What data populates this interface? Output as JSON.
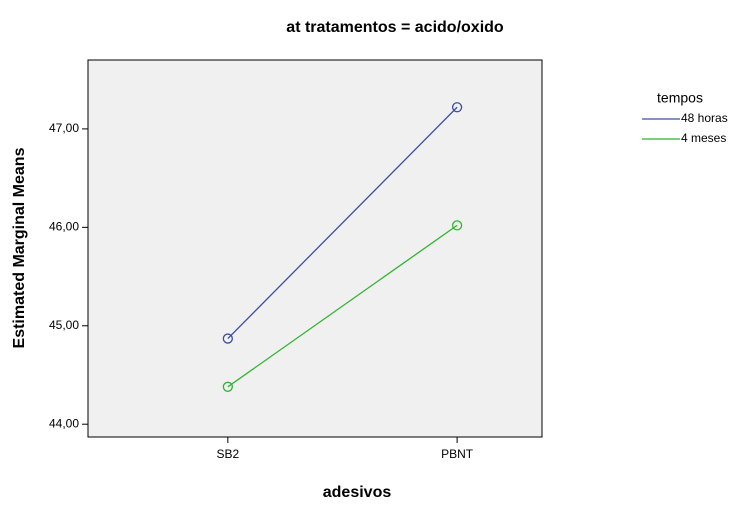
{
  "chart_data": {
    "type": "line",
    "title": "at tratamentos = acido/oxido",
    "x_label": "adesivos",
    "y_label": "Estimated Marginal Means",
    "categories": [
      "SB2",
      "PBNT"
    ],
    "series": [
      {
        "name": "48 horas",
        "color": "#3c4ea3",
        "values": [
          44.87,
          47.22
        ]
      },
      {
        "name": "4 meses",
        "color": "#2fb52f",
        "values": [
          44.38,
          46.02
        ]
      }
    ],
    "ylim": [
      43.87,
      47.7
    ],
    "yticks": [
      {
        "value": 44,
        "label": "44,00"
      },
      {
        "value": 45,
        "label": "45,00"
      },
      {
        "value": 46,
        "label": "46,00"
      },
      {
        "value": 47,
        "label": "47,00"
      }
    ],
    "legend_title": "tempos",
    "legend": "right"
  }
}
